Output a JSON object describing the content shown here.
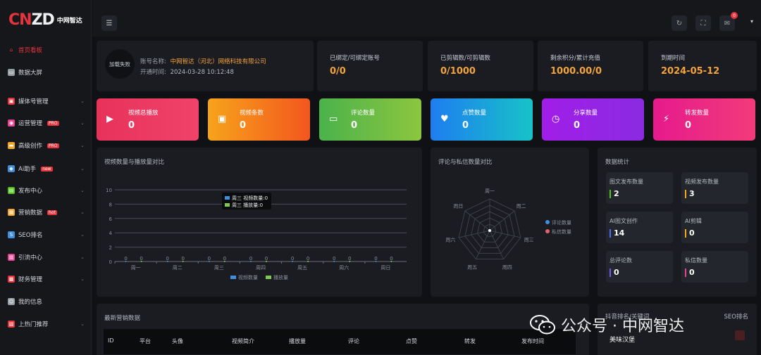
{
  "brand": {
    "logo_a": "CN",
    "logo_b": "ZD",
    "logo_sub": "中网智达"
  },
  "sidebar": {
    "items": [
      {
        "label": "首页看板",
        "icon": "home-icon",
        "active": true
      },
      {
        "label": "数据大屏",
        "icon": "monitor-icon"
      },
      {
        "label": "媒体号管理",
        "icon": "media-icon",
        "chev": "⌄"
      },
      {
        "label": "运营管理",
        "icon": "operation-icon",
        "tag": "PRO",
        "chev": "⌄"
      },
      {
        "label": "高级创作",
        "icon": "create-icon",
        "tag": "PRO",
        "chev": "⌄"
      },
      {
        "label": "Ai助手",
        "icon": "ai-icon",
        "tag": "new",
        "chev": "⌄"
      },
      {
        "label": "发布中心",
        "icon": "publish-icon",
        "chev": "⌄"
      },
      {
        "label": "营销数据",
        "icon": "marketing-icon",
        "tag": "hot",
        "chev": "⌄"
      },
      {
        "label": "SEO排名",
        "icon": "seo-icon",
        "chev": "⌄"
      },
      {
        "label": "引流中心",
        "icon": "traffic-icon",
        "chev": "⌄"
      },
      {
        "label": "财务管理",
        "icon": "finance-icon",
        "chev": "⌄"
      },
      {
        "label": "我的信息",
        "icon": "user-icon"
      },
      {
        "label": "上热门推荐",
        "icon": "hot-icon",
        "chev": "⌄"
      }
    ]
  },
  "topbar": {
    "notify_count": "0"
  },
  "account": {
    "avatar_text": "加载失败",
    "name_label": "账号名称:",
    "name_value": "中网智达（河北）网络科技有限公司",
    "open_label": "开通时间:",
    "open_value": "2024-03-28 10:12:48"
  },
  "stats": [
    {
      "label": "已绑定/可绑定账号",
      "value": "0/0"
    },
    {
      "label": "已剪辑数/可剪辑数",
      "value": "0/1000"
    },
    {
      "label": "剩余积分/累计充值",
      "value": "1000.00/0"
    },
    {
      "label": "到期时间",
      "value": "2024-05-12"
    }
  ],
  "metrics": [
    {
      "label": "视频总播放",
      "value": "0",
      "icon": "play-icon",
      "glyph": "▶"
    },
    {
      "label": "视频条数",
      "value": "0",
      "icon": "video-file-icon",
      "glyph": "▣"
    },
    {
      "label": "评论数量",
      "value": "0",
      "icon": "comment-icon",
      "glyph": "▭"
    },
    {
      "label": "点赞数量",
      "value": "0",
      "icon": "heart-icon",
      "glyph": "♥"
    },
    {
      "label": "分享数量",
      "value": "0",
      "icon": "share-icon",
      "glyph": "◷"
    },
    {
      "label": "转发数量",
      "value": "0",
      "icon": "bolt-icon",
      "glyph": "⚡"
    }
  ],
  "chart_data": [
    {
      "type": "line",
      "title": "视频数量与播放量对比",
      "categories": [
        "周一",
        "周二",
        "周三",
        "周四",
        "周五",
        "周六",
        "周日"
      ],
      "series": [
        {
          "name": "视频数量",
          "values": [
            0,
            0,
            0,
            0,
            0,
            0,
            0
          ]
        },
        {
          "name": "播放量",
          "values": [
            0,
            0,
            0,
            0,
            0,
            0,
            0
          ]
        }
      ],
      "ylim": [
        0,
        10
      ],
      "yticks": [
        "0",
        "2",
        "4",
        "6",
        "8",
        "10"
      ],
      "grid": true,
      "legend": "bottom",
      "tooltip": {
        "title": "周三",
        "lines": [
          "周三 视频数量:0",
          "周三 播放量:0"
        ]
      },
      "colors": [
        "#3f8fde",
        "#7ec850"
      ]
    },
    {
      "type": "radar",
      "title": "评论与私信数量对比",
      "categories": [
        "周一",
        "周二",
        "周三",
        "周四",
        "周五",
        "周六",
        "周日"
      ],
      "series": [
        {
          "name": "评论数量",
          "values": [
            0,
            0,
            0,
            0,
            0,
            0,
            0
          ]
        },
        {
          "name": "私信数量",
          "values": [
            0,
            0,
            0,
            0,
            0,
            0,
            0
          ]
        }
      ],
      "legend": "right",
      "colors": [
        "#3f8fde",
        "#e5626b"
      ]
    }
  ],
  "data_stats": {
    "title": "数据统计",
    "items": [
      {
        "label": "图文发布数量",
        "value": "2",
        "color": "#52c41a"
      },
      {
        "label": "视频发布数量",
        "value": "3",
        "color": "#f5a623"
      },
      {
        "label": "AI图文创作",
        "value": "14",
        "color": "#4a6cf7"
      },
      {
        "label": "AI剪辑",
        "value": "0",
        "color": "#f5a623"
      },
      {
        "label": "总评论数",
        "value": "0",
        "color": "#6c5ce7"
      },
      {
        "label": "私信数量",
        "value": "0",
        "color": "#e84393"
      }
    ]
  },
  "marketing": {
    "title": "最新营销数据",
    "columns": [
      "ID",
      "平台",
      "头像",
      "视频简介",
      "播放量",
      "评论",
      "点赞",
      "转发",
      "发布时间"
    ]
  },
  "seo": {
    "title_left": "抖音排名/关键词",
    "title_right": "SEO排名",
    "row_text": "美味汉堡"
  },
  "watermark": {
    "text": "公众号 · 中网智达"
  }
}
